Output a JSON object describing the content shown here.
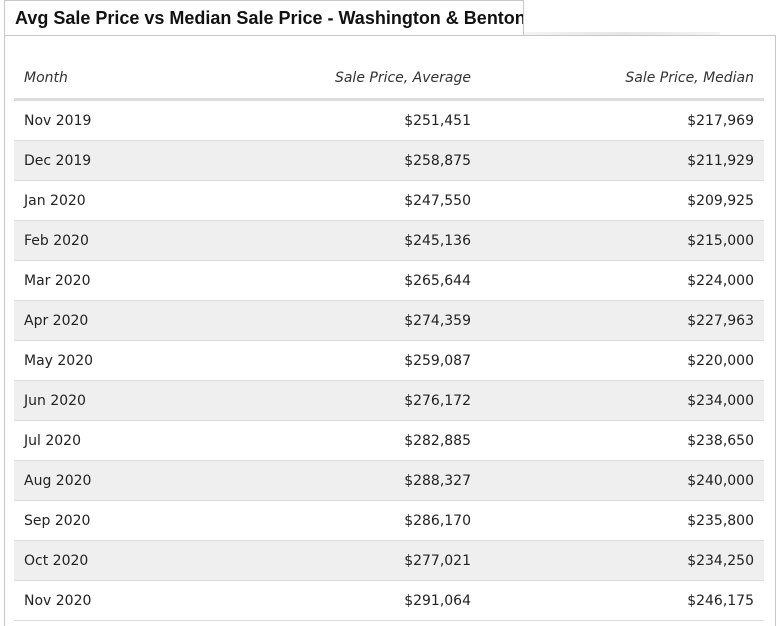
{
  "title": "Avg Sale Price vs Median Sale Price - Washington & Benton C",
  "chart_data": {
    "type": "table",
    "title": "Avg Sale Price vs Median Sale Price - Washington & Benton C",
    "columns": [
      "Month",
      "Sale Price, Average",
      "Sale Price, Median"
    ],
    "rows": [
      [
        "Nov 2019",
        "$251,451",
        "$217,969"
      ],
      [
        "Dec 2019",
        "$258,875",
        "$211,929"
      ],
      [
        "Jan 2020",
        "$247,550",
        "$209,925"
      ],
      [
        "Feb 2020",
        "$245,136",
        "$215,000"
      ],
      [
        "Mar 2020",
        "$265,644",
        "$224,000"
      ],
      [
        "Apr 2020",
        "$274,359",
        "$227,963"
      ],
      [
        "May 2020",
        "$259,087",
        "$220,000"
      ],
      [
        "Jun 2020",
        "$276,172",
        "$234,000"
      ],
      [
        "Jul 2020",
        "$282,885",
        "$238,650"
      ],
      [
        "Aug 2020",
        "$288,327",
        "$240,000"
      ],
      [
        "Sep 2020",
        "$286,170",
        "$235,800"
      ],
      [
        "Oct 2020",
        "$277,021",
        "$234,250"
      ],
      [
        "Nov 2020",
        "$291,064",
        "$246,175"
      ]
    ]
  },
  "colors": {
    "row_alt": "#efefef",
    "border": "#dddddd"
  }
}
